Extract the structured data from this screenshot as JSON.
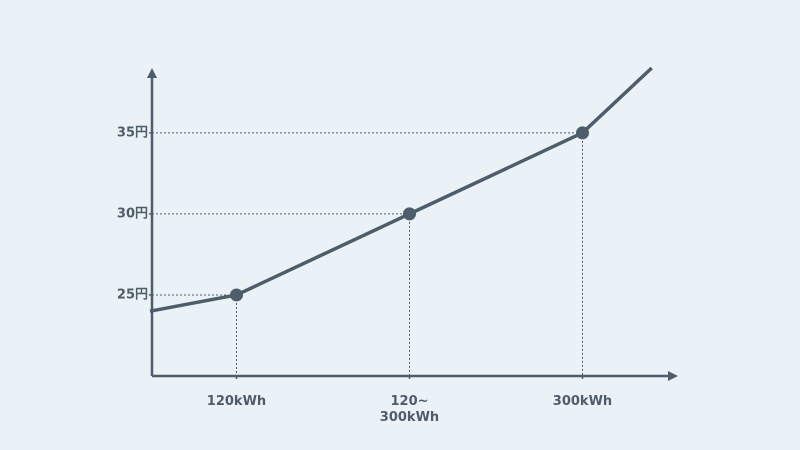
{
  "chart_data": {
    "type": "line",
    "x": [
      0.5,
      1,
      2,
      3,
      3.4
    ],
    "series": [
      {
        "color": "#4f5c69",
        "values": [
          24,
          25,
          30,
          35,
          39
        ]
      }
    ],
    "xlim": [
      0.5,
      3.5
    ],
    "xticks": [
      {
        "value": 1,
        "label": "120kWh"
      },
      {
        "value": 2,
        "label": "120~\n300kWh"
      },
      {
        "value": 3,
        "label": "300kWh"
      }
    ],
    "ylim": [
      20,
      39
    ],
    "yticks": [
      {
        "value": 25,
        "label": "25円"
      },
      {
        "value": 30,
        "label": "30円"
      },
      {
        "value": 35,
        "label": "35円"
      }
    ]
  }
}
